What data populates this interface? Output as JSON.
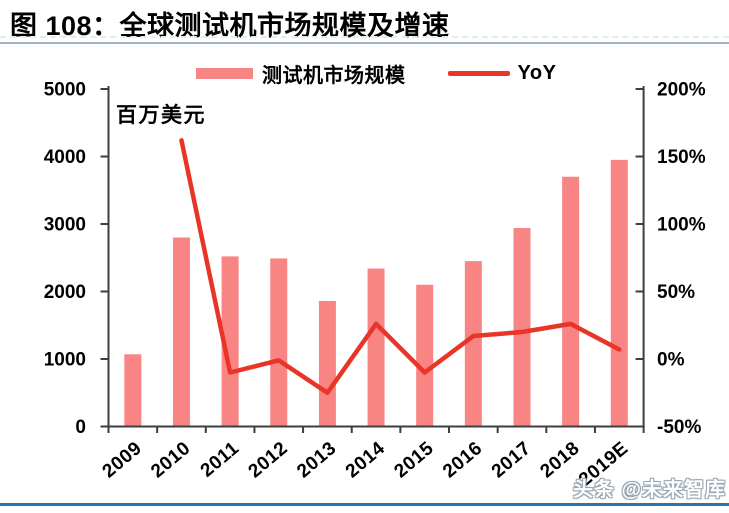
{
  "header": {
    "title": "图 108：全球测试机市场规模及增速"
  },
  "footer": {
    "watermark": "头条 @未来智库"
  },
  "colors": {
    "bar": "#F98484",
    "line": "#E93528",
    "axis": "#3E3E3E",
    "title_rule": "#9DB3C8",
    "bottom_rule": "#2B74AD"
  },
  "chart_data": {
    "type": "bar+line",
    "title": "图 108：全球测试机市场规模及增速",
    "unit_label": "百万美元",
    "categories": [
      "2009",
      "2010",
      "2011",
      "2012",
      "2013",
      "2014",
      "2015",
      "2016",
      "2017",
      "2018",
      "2019E"
    ],
    "series": [
      {
        "name": "测试机市场规模",
        "type": "bar",
        "axis": "left",
        "unit": "百万美元",
        "values": [
          1070,
          2800,
          2520,
          2490,
          1860,
          2340,
          2100,
          2450,
          2940,
          3700,
          3950
        ]
      },
      {
        "name": "YoY",
        "type": "line",
        "axis": "right",
        "unit": "%",
        "values": [
          null,
          162,
          -10,
          -1,
          -25,
          26,
          -10,
          17,
          20,
          26,
          7
        ]
      }
    ],
    "left_axis": {
      "min": 0,
      "max": 5000,
      "step": 1000,
      "tick_labels": [
        "0",
        "1000",
        "2000",
        "3000",
        "4000",
        "5000"
      ]
    },
    "right_axis": {
      "min": -50,
      "max": 200,
      "step": 50,
      "tick_labels": [
        "-50%",
        "0%",
        "50%",
        "100%",
        "150%",
        "200%"
      ]
    },
    "legend_position": "top",
    "grid": false
  }
}
